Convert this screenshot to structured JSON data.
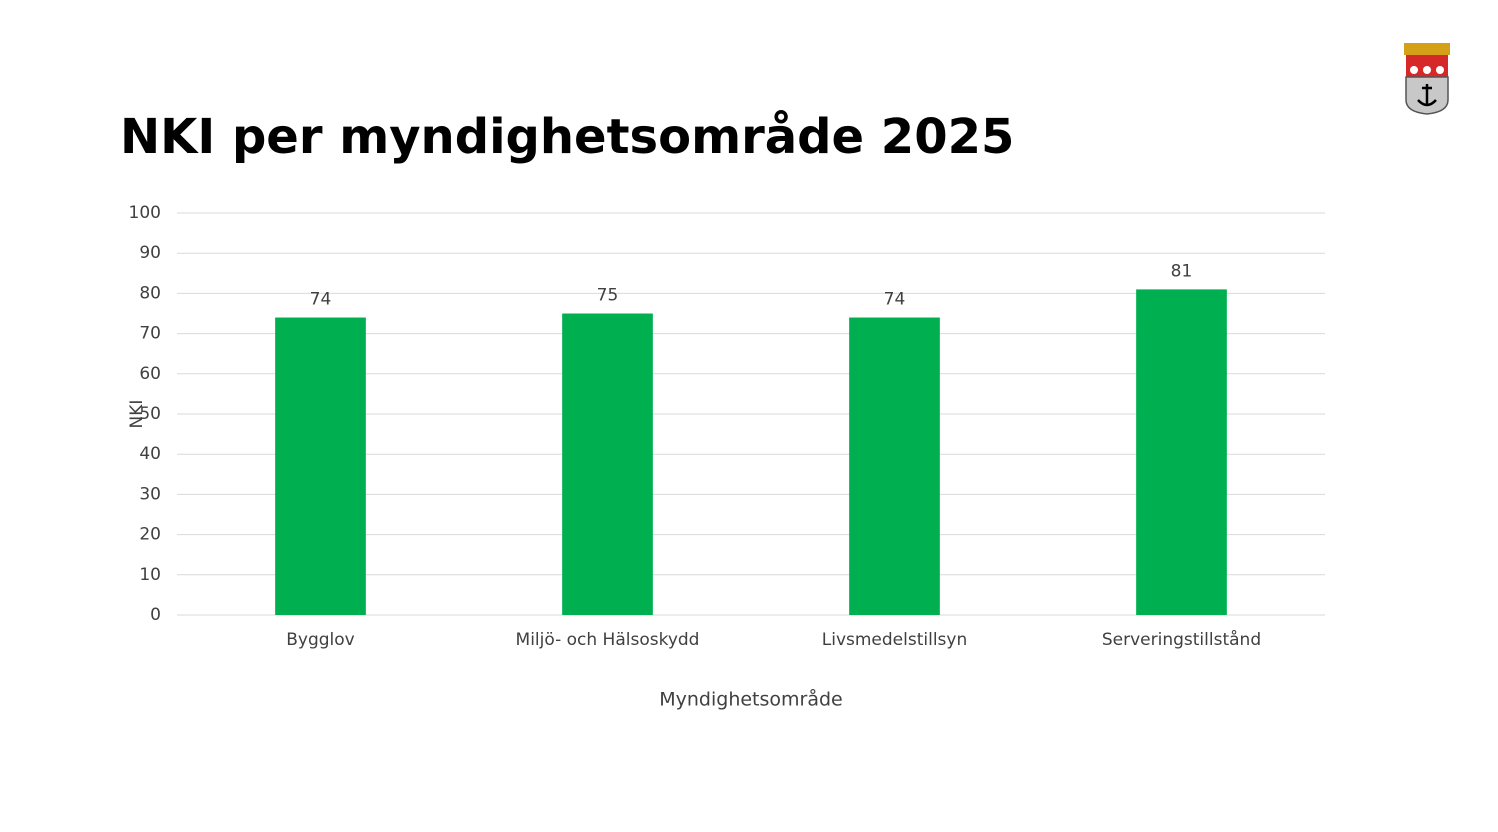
{
  "chart_data": {
    "type": "bar",
    "title": "NKI per myndighetsområde 2025",
    "x_label": "Myndighetsområde",
    "y_label": "NKI",
    "categories": [
      "Bygglov",
      "Miljö- och Hälsoskydd",
      "Livsmedelstillsyn",
      "Serveringstillstånd"
    ],
    "values": [
      74,
      75,
      74,
      81
    ],
    "color": "#00b050",
    "ylim": [
      0,
      100
    ],
    "yticks": [
      0,
      10,
      20,
      30,
      40,
      50,
      60,
      70,
      80,
      90,
      100
    ],
    "grid": true,
    "data_labels": true
  }
}
